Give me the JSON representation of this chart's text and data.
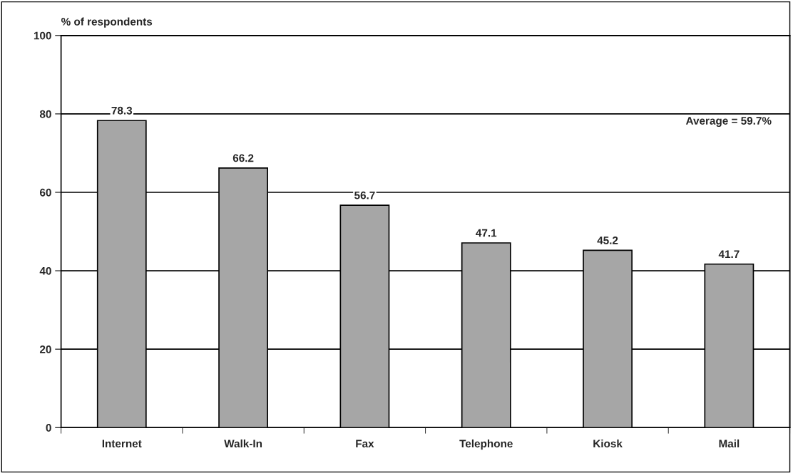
{
  "chart_data": {
    "type": "bar",
    "ylabel": "% of respondents",
    "categories": [
      "Internet",
      "Walk-In",
      "Fax",
      "Telephone",
      "Kiosk",
      "Mail"
    ],
    "values": [
      78.3,
      66.2,
      56.7,
      47.1,
      45.2,
      41.7
    ],
    "color": "#a6a6a6",
    "ylim": [
      0,
      100
    ],
    "yticks": [
      0,
      20,
      40,
      60,
      80,
      100
    ],
    "grid": "y",
    "data_labels": true,
    "annotations": [
      "Average = 59.7%"
    ]
  }
}
